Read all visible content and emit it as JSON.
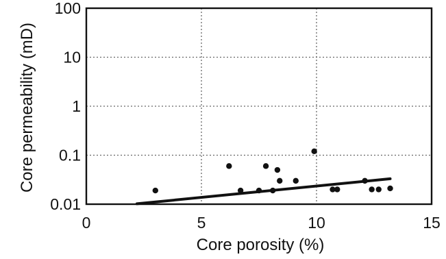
{
  "chart_data": {
    "type": "scatter",
    "title": "",
    "xlabel": "Core porosity (%)",
    "ylabel": "Core permeability (mD)",
    "xlim": [
      0,
      15
    ],
    "ylim": [
      0.01,
      100
    ],
    "y_scale": "log",
    "grid": true,
    "grid_style": "dashed",
    "x_ticks": [
      0,
      5,
      10,
      15
    ],
    "x_tick_labels": [
      "0",
      "5",
      "10",
      "15"
    ],
    "y_ticks": [
      0.01,
      0.1,
      1,
      10,
      100
    ],
    "y_tick_labels": [
      "0.01",
      "0.1",
      "1",
      "10",
      "100"
    ],
    "series": [
      {
        "type": "scatter",
        "points": [
          {
            "x": 3.0,
            "y": 0.019
          },
          {
            "x": 6.2,
            "y": 0.06
          },
          {
            "x": 6.7,
            "y": 0.019
          },
          {
            "x": 7.5,
            "y": 0.019
          },
          {
            "x": 7.8,
            "y": 0.06
          },
          {
            "x": 8.1,
            "y": 0.019
          },
          {
            "x": 8.3,
            "y": 0.05
          },
          {
            "x": 8.4,
            "y": 0.03
          },
          {
            "x": 9.1,
            "y": 0.03
          },
          {
            "x": 9.9,
            "y": 0.12
          },
          {
            "x": 10.7,
            "y": 0.02
          },
          {
            "x": 10.9,
            "y": 0.02
          },
          {
            "x": 12.1,
            "y": 0.03
          },
          {
            "x": 12.4,
            "y": 0.02
          },
          {
            "x": 12.7,
            "y": 0.02
          },
          {
            "x": 13.2,
            "y": 0.021
          }
        ],
        "color": "#111111"
      },
      {
        "type": "line",
        "points": [
          {
            "x": 2.2,
            "y": 0.0102
          },
          {
            "x": 13.2,
            "y": 0.033
          }
        ],
        "color": "#111111"
      }
    ]
  }
}
